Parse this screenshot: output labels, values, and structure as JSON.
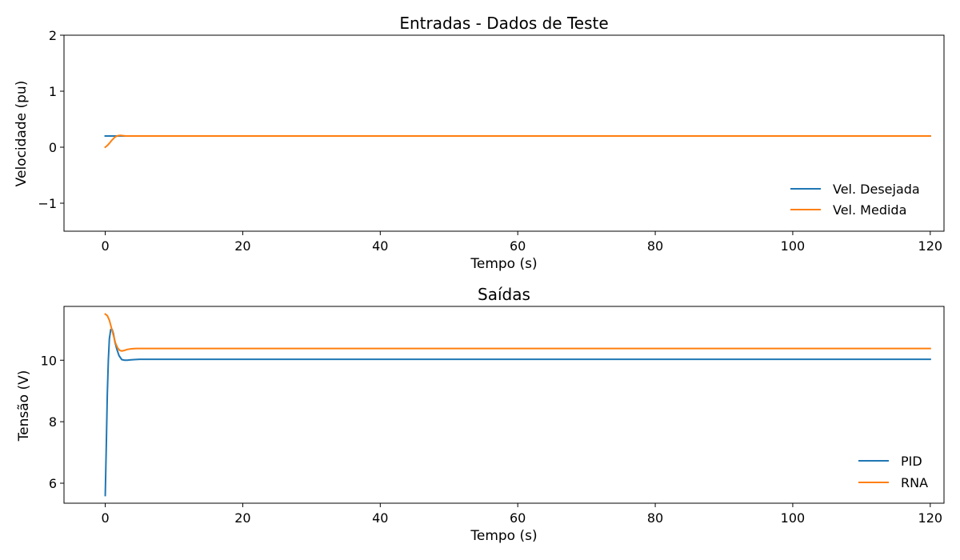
{
  "chart_data": [
    {
      "type": "line",
      "title": "Entradas - Dados de Teste",
      "xlabel": "Tempo (s)",
      "ylabel": "Velocidade (pu)",
      "xlim": [
        -6,
        122
      ],
      "ylim": [
        -1.5,
        2
      ],
      "xticks": [
        0,
        20,
        40,
        60,
        80,
        100,
        120
      ],
      "yticks": [
        -1,
        0,
        1,
        2
      ],
      "ytick_labels": [
        "−1",
        "0",
        "1",
        "2"
      ],
      "legend_position": "lower right",
      "series": [
        {
          "name": "Vel. Desejada",
          "color": "#1f77b4",
          "x": [
            0,
            120
          ],
          "y": [
            0.2,
            0.2
          ]
        },
        {
          "name": "Vel. Medida",
          "color": "#ff7f0e",
          "x": [
            0,
            0.3,
            0.6,
            1.0,
            1.4,
            1.8,
            2.2,
            2.6,
            3.0,
            3.5,
            4.0,
            120
          ],
          "y": [
            0.0,
            0.03,
            0.07,
            0.13,
            0.18,
            0.205,
            0.21,
            0.205,
            0.2,
            0.2,
            0.2,
            0.2
          ]
        }
      ]
    },
    {
      "type": "line",
      "title": "Saídas",
      "xlabel": "Tempo (s)",
      "ylabel": "Tensão (V)",
      "xlim": [
        -6,
        122
      ],
      "ylim": [
        5.35,
        11.75
      ],
      "xticks": [
        0,
        20,
        40,
        60,
        80,
        100,
        120
      ],
      "yticks": [
        6,
        8,
        10
      ],
      "ytick_labels": [
        "6",
        "8",
        "10"
      ],
      "legend_position": "lower right",
      "series": [
        {
          "name": "PID",
          "color": "#1f77b4",
          "x": [
            0,
            0.15,
            0.3,
            0.45,
            0.6,
            0.8,
            1.0,
            1.2,
            1.4,
            1.7,
            2.0,
            2.4,
            2.8,
            3.2,
            3.6,
            4.2,
            5.0,
            6.0,
            120
          ],
          "y": [
            5.6,
            7.2,
            8.9,
            10.0,
            10.7,
            11.0,
            11.0,
            10.85,
            10.6,
            10.35,
            10.15,
            10.02,
            10.0,
            10.0,
            10.01,
            10.02,
            10.03,
            10.03,
            10.03
          ]
        },
        {
          "name": "RNA",
          "color": "#ff7f0e",
          "x": [
            0,
            0.3,
            0.6,
            0.9,
            1.2,
            1.5,
            1.8,
            2.1,
            2.4,
            2.8,
            3.2,
            3.8,
            4.5,
            6.0,
            120
          ],
          "y": [
            11.5,
            11.45,
            11.3,
            11.05,
            10.8,
            10.55,
            10.4,
            10.32,
            10.3,
            10.32,
            10.35,
            10.37,
            10.38,
            10.38,
            10.38
          ]
        }
      ]
    }
  ]
}
